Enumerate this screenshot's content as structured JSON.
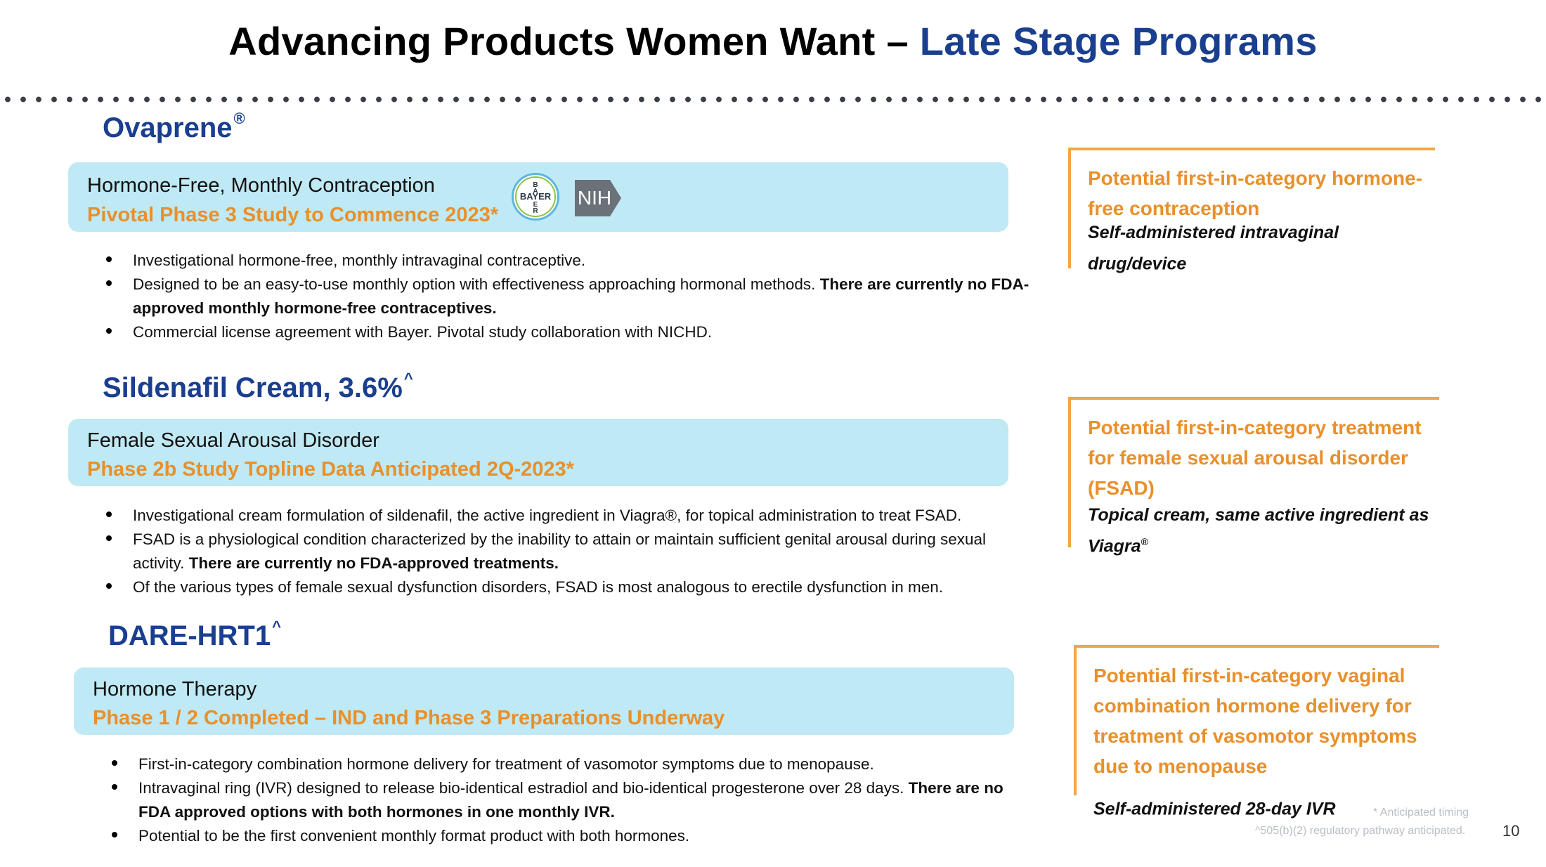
{
  "header": {
    "title_main": "Advancing Products Women Want – ",
    "title_accent": "Late Stage Programs"
  },
  "programs": [
    {
      "name": "Ovaprene",
      "name_mark": "®",
      "banner_line1": "Hormone-Free, Monthly Contraception",
      "banner_line2": "Pivotal Phase 3 Study to Commence 2023*",
      "partner_logos": [
        "BAYER",
        "NIH"
      ],
      "bullets": [
        {
          "text": "Investigational hormone-free, monthly intravaginal contraceptive.",
          "bold": ""
        },
        {
          "text": "Designed to be an easy-to-use monthly option with effectiveness approaching hormonal methods. ",
          "bold": "There are currently no FDA-approved monthly hormone-free contraceptives."
        },
        {
          "text": "Commercial license agreement with Bayer.  Pivotal study collaboration with NICHD.",
          "bold": ""
        }
      ],
      "callout_title": "Potential first-in-category hormone-free contraception",
      "callout_sub": "Self-administered intravaginal drug/device",
      "callout_sub_mark": ""
    },
    {
      "name": "Sildenafil Cream, 3.6%",
      "name_mark": "^",
      "banner_line1": "Female Sexual Arousal Disorder",
      "banner_line2": "Phase 2b Study Topline Data Anticipated 2Q-2023*",
      "bullets": [
        {
          "text": "Investigational cream formulation of sildenafil, the active ingredient in Viagra®, for topical administration to treat FSAD.",
          "bold": ""
        },
        {
          "text": "FSAD is a physiological condition characterized by the inability to attain or maintain sufficient genital arousal during sexual activity.  ",
          "bold": "There are currently no FDA-approved treatments."
        },
        {
          "text": "Of the various types of female sexual dysfunction disorders, FSAD is most analogous to erectile dysfunction in men.",
          "bold": ""
        }
      ],
      "callout_title": "Potential first-in-category treatment for female sexual arousal disorder (FSAD)",
      "callout_sub": "Topical cream, same active ingredient as Viagra",
      "callout_sub_mark": "®"
    },
    {
      "name": "DARE-HRT1",
      "name_mark": "^",
      "banner_line1": "Hormone Therapy",
      "banner_line2": "Phase 1 / 2 Completed – IND and Phase 3 Preparations Underway",
      "bullets": [
        {
          "text": "First-in-category combination hormone delivery for treatment of vasomotor symptoms due to menopause.",
          "bold": ""
        },
        {
          "text": "Intravaginal ring (IVR) designed to release bio-identical estradiol and bio-identical progesterone over 28 days. ",
          "bold": "There are no FDA approved options with both hormones in one monthly IVR."
        },
        {
          "text": "Potential to be the first convenient monthly format product with both hormones.",
          "bold": ""
        }
      ],
      "callout_title": "Potential first-in-category vaginal combination hormone delivery for treatment of vasomotor symptoms due to menopause",
      "callout_sub": "Self-administered 28-day IVR",
      "callout_sub_mark": ""
    }
  ],
  "footnotes": {
    "timing": "* Anticipated timing",
    "pathway": "^505(b)(2) regulatory pathway anticipated."
  },
  "page_number": "10",
  "colors": {
    "navy": "#1a3f8f",
    "orange": "#e8902c",
    "banner": "#bfe9f4"
  }
}
